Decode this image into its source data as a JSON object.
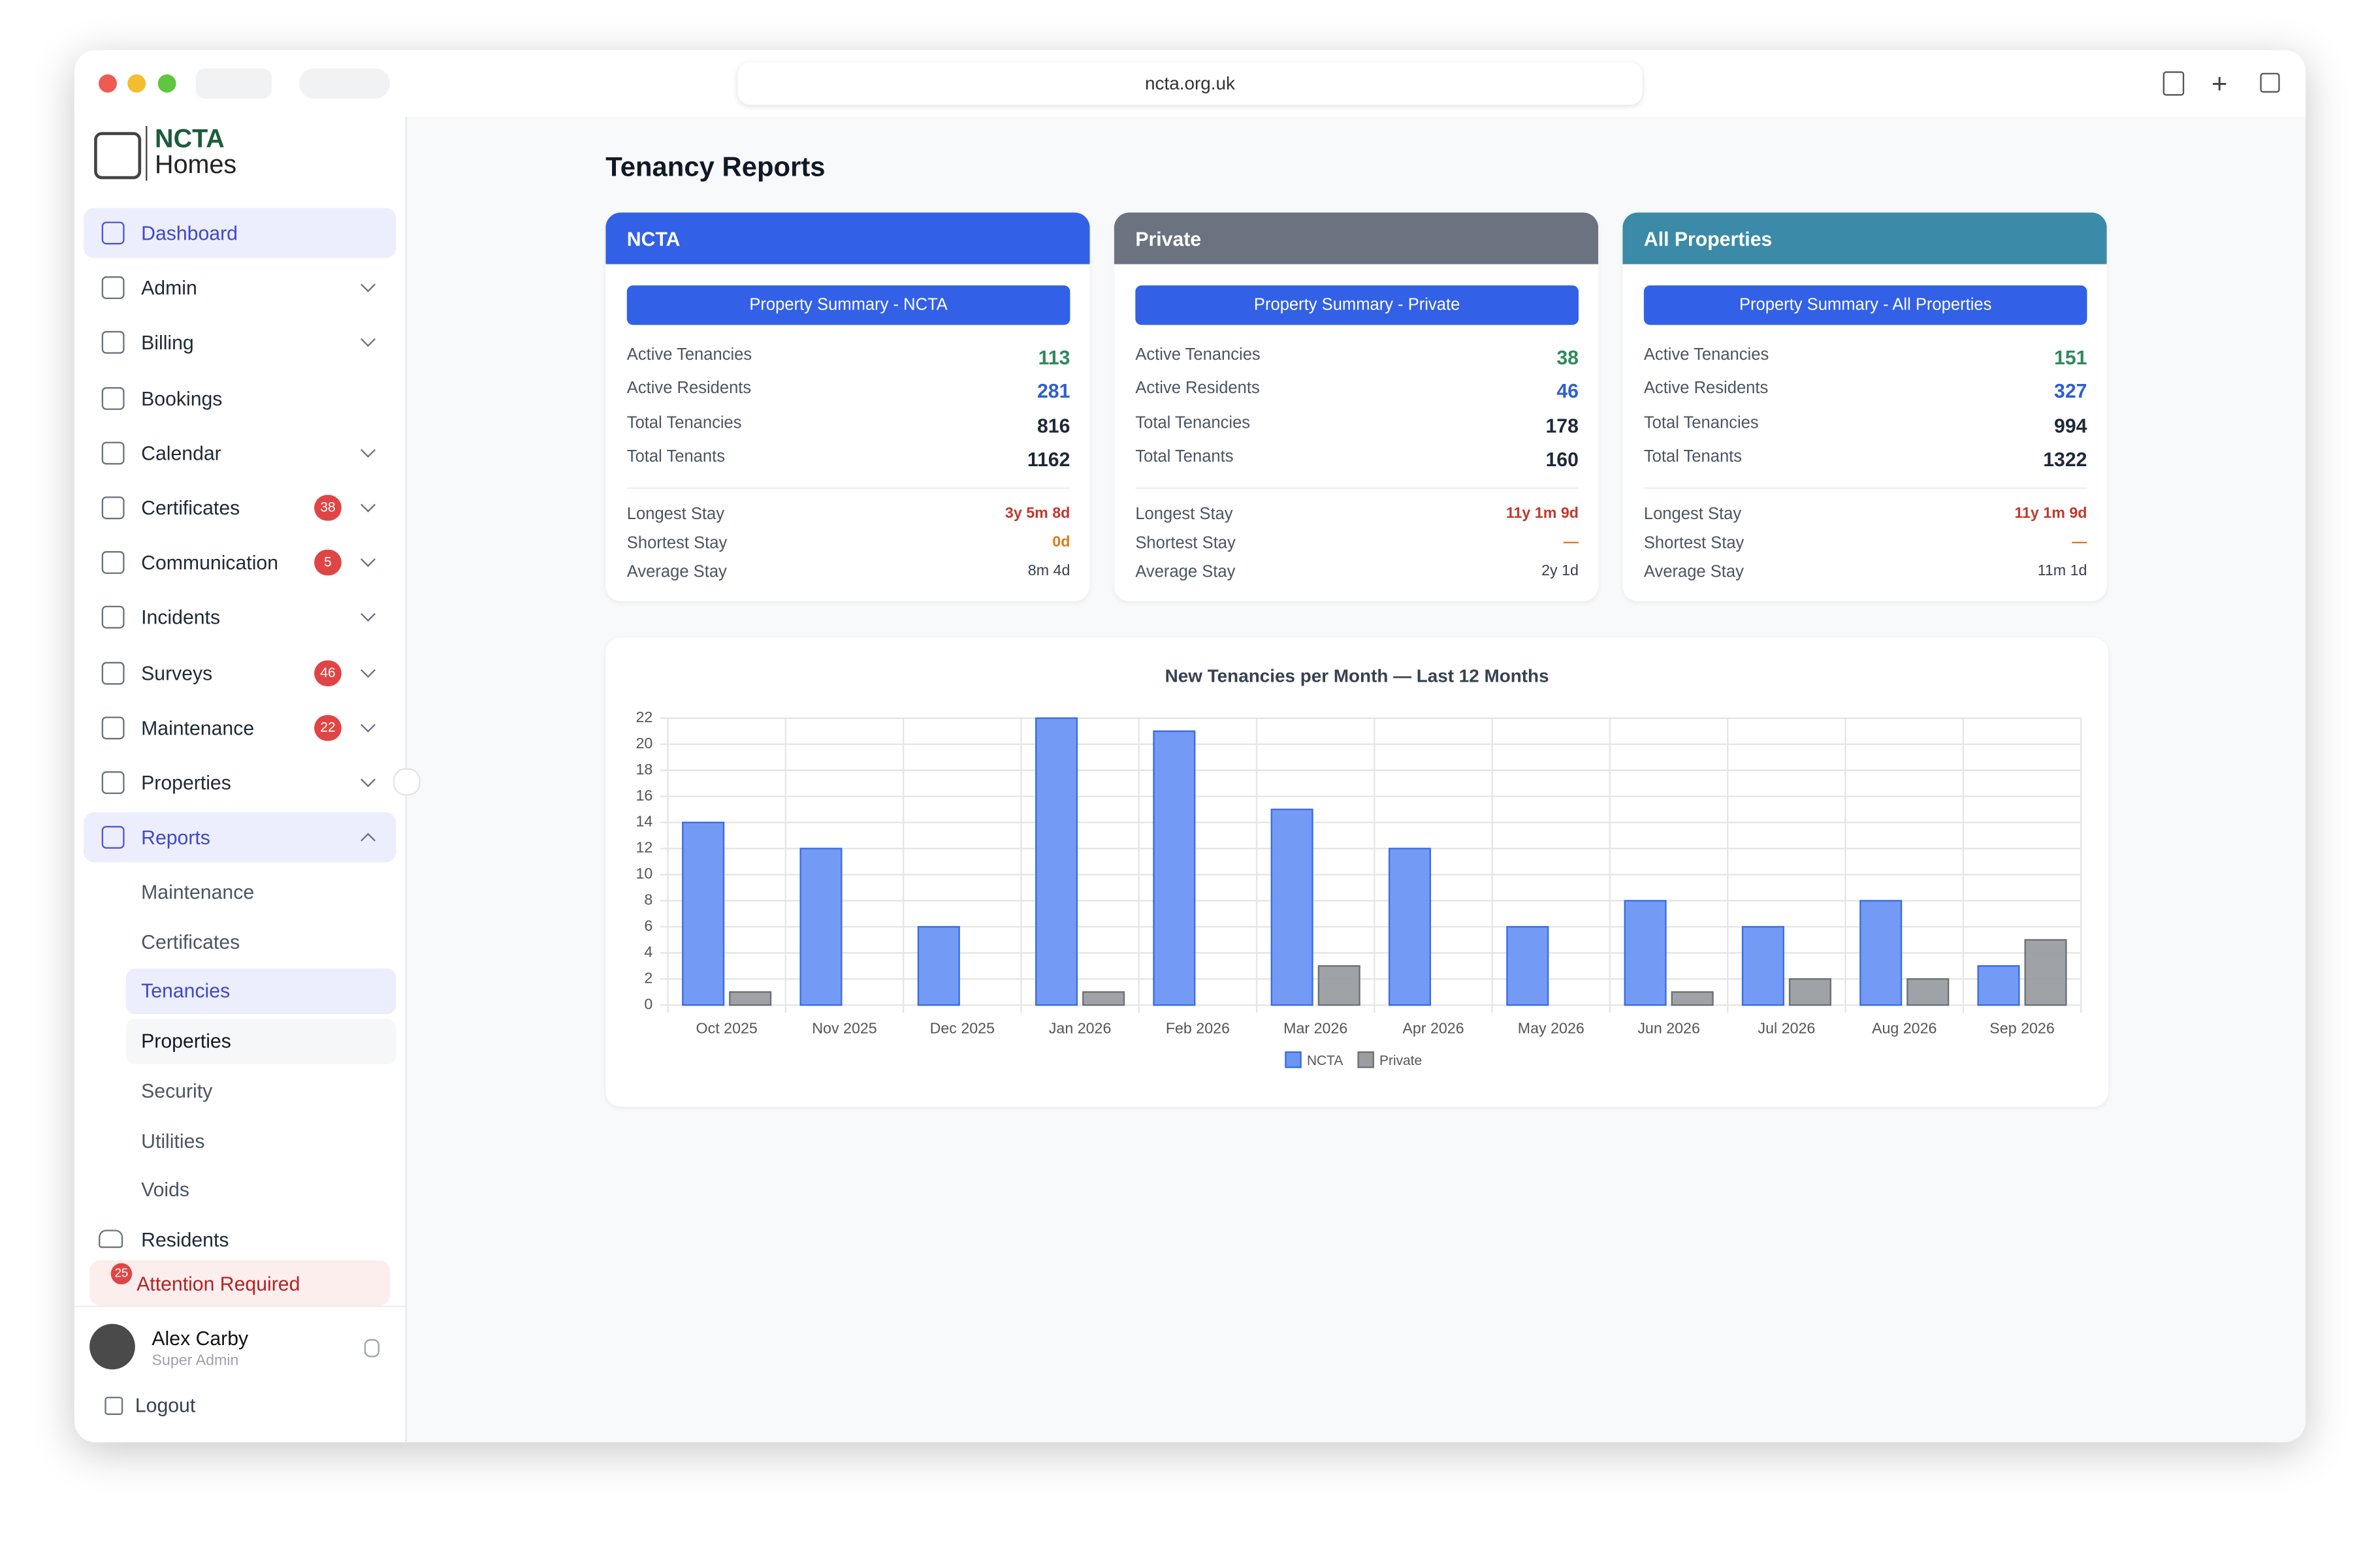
{
  "browser": {
    "url": "ncta.org.uk"
  },
  "sidebar": {
    "logo": [
      "NCTA",
      "Homes"
    ],
    "nav": [
      {
        "label": "Dashboard"
      },
      {
        "label": "Admin"
      },
      {
        "label": "Billing"
      },
      {
        "label": "Bookings"
      },
      {
        "label": "Calendar"
      },
      {
        "label": "Certificates",
        "badge": 38
      },
      {
        "label": "Communication",
        "badge": 5
      },
      {
        "label": "Incidents"
      },
      {
        "label": "Surveys",
        "badge": 46
      },
      {
        "label": "Maintenance",
        "badge": 22
      },
      {
        "label": "Properties"
      },
      {
        "label": "Reports"
      }
    ],
    "reports_sub": [
      "Maintenance",
      "Certificates",
      "Tenancies",
      "Properties",
      "Security",
      "Utilities",
      "Voids"
    ],
    "residents": "Residents",
    "attention": {
      "label": "Attention Required",
      "badge": 25
    },
    "user": {
      "name": "Alex Carby",
      "role": "Super Admin"
    },
    "logout": "Logout"
  },
  "page": {
    "title": "Tenancy Reports"
  },
  "cards": [
    {
      "title": "NCTA",
      "button": "Property Summary - NCTA",
      "stats": [
        {
          "label": "Active Tenancies",
          "value": 113
        },
        {
          "label": "Active Residents",
          "value": 281
        },
        {
          "label": "Total Tenancies",
          "value": 816
        },
        {
          "label": "Total Tenants",
          "value": 1162
        }
      ],
      "stays": [
        {
          "label": "Longest Stay",
          "value": "3y 5m 8d"
        },
        {
          "label": "Shortest Stay",
          "value": "0d"
        },
        {
          "label": "Average Stay",
          "value": "8m 4d"
        }
      ]
    },
    {
      "title": "Private",
      "button": "Property Summary - Private",
      "stats": [
        {
          "label": "Active Tenancies",
          "value": 38
        },
        {
          "label": "Active Residents",
          "value": 46
        },
        {
          "label": "Total Tenancies",
          "value": 178
        },
        {
          "label": "Total Tenants",
          "value": 160
        }
      ],
      "stays": [
        {
          "label": "Longest Stay",
          "value": "11y 1m 9d"
        },
        {
          "label": "Shortest Stay",
          "value": "—"
        },
        {
          "label": "Average Stay",
          "value": "2y 1d"
        }
      ]
    },
    {
      "title": "All Properties",
      "button": "Property Summary - All Properties",
      "stats": [
        {
          "label": "Active Tenancies",
          "value": 151
        },
        {
          "label": "Active Residents",
          "value": 327
        },
        {
          "label": "Total Tenancies",
          "value": 994
        },
        {
          "label": "Total Tenants",
          "value": 1322
        }
      ],
      "stays": [
        {
          "label": "Longest Stay",
          "value": "11y 1m 9d"
        },
        {
          "label": "Shortest Stay",
          "value": "—"
        },
        {
          "label": "Average Stay",
          "value": "11m 1d"
        }
      ]
    }
  ],
  "chart_data": {
    "type": "bar",
    "title": "New Tenancies per Month — Last 12 Months",
    "categories": [
      "Oct 2025",
      "Nov 2025",
      "Dec 2025",
      "Jan 2026",
      "Feb 2026",
      "Mar 2026",
      "Apr 2026",
      "May 2026",
      "Jun 2026",
      "Jul 2026",
      "Aug 2026",
      "Sep 2026"
    ],
    "series": [
      {
        "name": "NCTA",
        "color": "#6b96f5",
        "values": [
          14,
          12,
          6,
          22,
          21,
          15,
          12,
          6,
          8,
          6,
          8,
          3
        ]
      },
      {
        "name": "Private",
        "color": "#9a9da2",
        "values": [
          1,
          0,
          0,
          1,
          0,
          3,
          0,
          0,
          1,
          2,
          2,
          5
        ]
      }
    ],
    "ylim": [
      0,
      22
    ],
    "yticks": [
      0,
      2,
      4,
      6,
      8,
      10,
      12,
      14,
      16,
      18,
      20,
      22
    ],
    "grid": true,
    "legend": "bottom"
  }
}
